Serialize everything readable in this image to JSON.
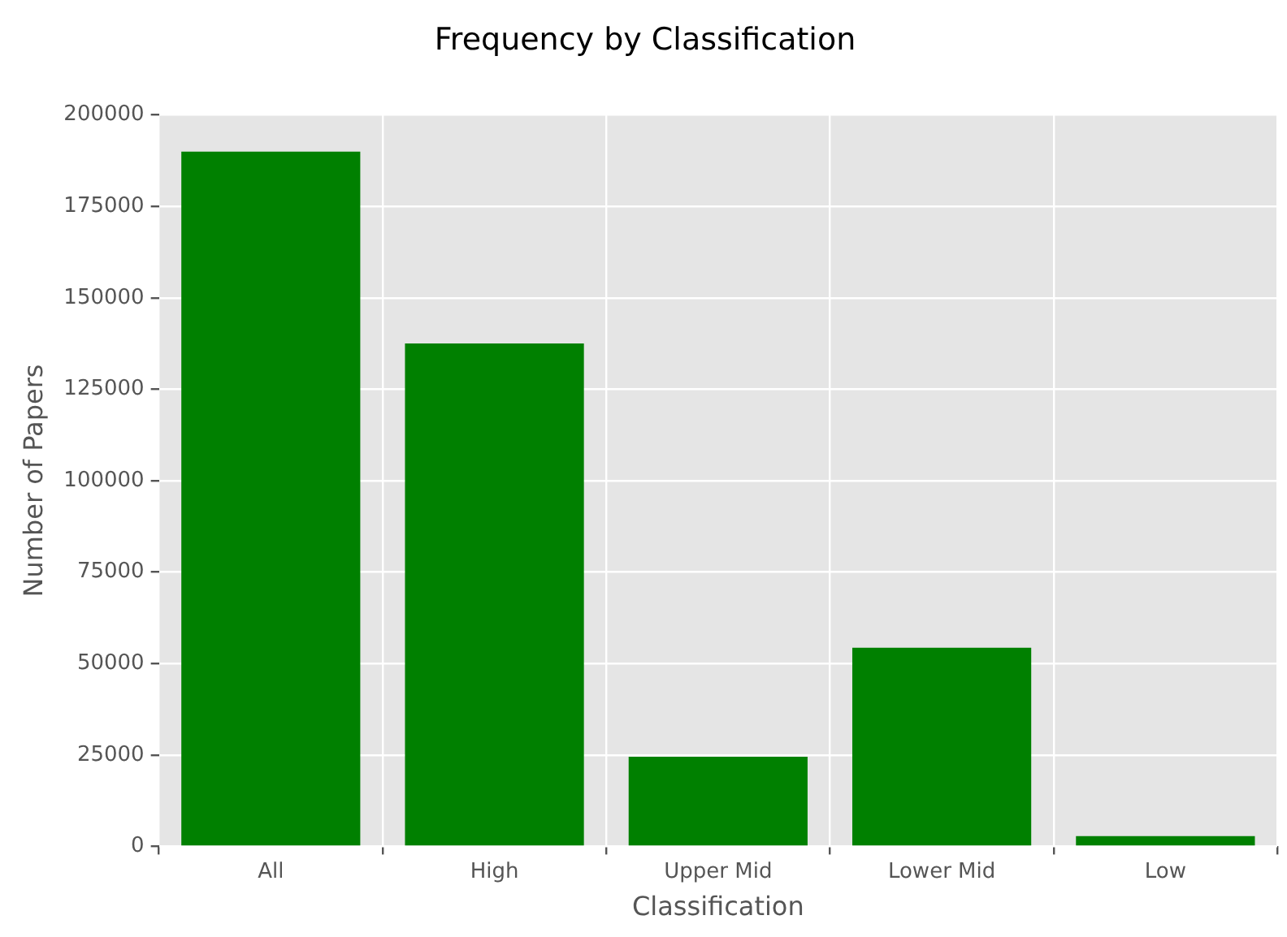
{
  "chart_data": {
    "type": "bar",
    "title": "Frequency by Classification",
    "xlabel": "Classification",
    "ylabel": "Number of Papers",
    "categories": [
      "All",
      "High",
      "Upper Mid",
      "Lower Mid",
      "Low"
    ],
    "values": [
      190000,
      137500,
      24500,
      54300,
      2800
    ],
    "color": "#008000",
    "ylim": [
      0,
      200000
    ],
    "yticks": [
      0,
      25000,
      50000,
      75000,
      100000,
      125000,
      150000,
      175000,
      200000
    ],
    "grid": true,
    "legend": false
  }
}
